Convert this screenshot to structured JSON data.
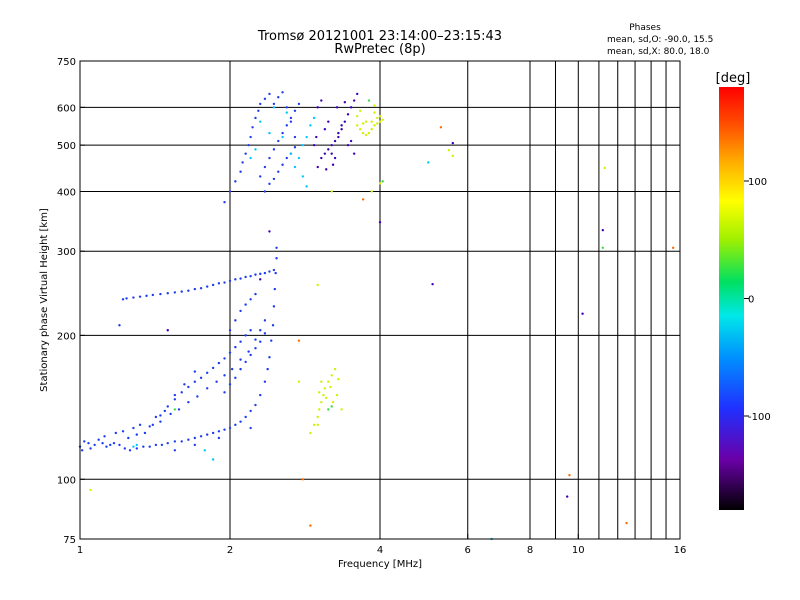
{
  "chart_data": {
    "type": "scatter",
    "title": "Tromsø 20121001 23:14:00–23:15:43",
    "subtitle": "RwPretec (8p)",
    "stats": {
      "heading": "Phases",
      "line1": "mean, sd,O: -90.0, 15.5",
      "line2": "mean, sd,X:  80.0, 18.0"
    },
    "xlabel": "Frequency [MHz]",
    "ylabel": "Stationary phase Virtual Height [km]",
    "xscale": "log",
    "yscale": "log",
    "xlim": [
      1,
      16
    ],
    "ylim": [
      75,
      750
    ],
    "x_ticks": [
      1,
      2,
      4,
      6,
      8,
      10,
      16
    ],
    "x_tick_labels": [
      "1",
      "2",
      "4",
      "6",
      "8",
      "10",
      "16"
    ],
    "y_ticks": [
      75,
      100,
      200,
      300,
      400,
      500,
      600,
      750
    ],
    "y_tick_labels": [
      "75",
      "100",
      "200",
      "300",
      "400",
      "500",
      "600",
      "750"
    ],
    "grid_x": [
      2,
      4,
      6,
      8,
      9,
      10,
      11,
      12,
      13,
      14,
      15
    ],
    "grid_y": [
      100,
      200,
      300,
      400,
      500,
      600
    ],
    "colorbar": {
      "label": "[deg]",
      "range": [
        -180,
        180
      ],
      "ticks": [
        100,
        0,
        -100
      ],
      "tick_labels": [
        "100",
        "0",
        "-100"
      ]
    },
    "series": [
      {
        "color": "#1e3cf0",
        "points": [
          [
            1.0,
            117
          ],
          [
            1.01,
            115
          ],
          [
            1.02,
            120
          ],
          [
            1.04,
            119
          ],
          [
            1.05,
            116
          ],
          [
            1.07,
            118
          ],
          [
            1.09,
            121
          ],
          [
            1.11,
            119
          ],
          [
            1.13,
            117
          ],
          [
            1.15,
            118
          ],
          [
            1.17,
            119
          ],
          [
            1.2,
            118
          ],
          [
            1.23,
            116
          ],
          [
            1.26,
            115
          ],
          [
            1.3,
            116
          ],
          [
            1.34,
            117
          ],
          [
            1.38,
            117
          ],
          [
            1.42,
            118
          ],
          [
            1.46,
            118
          ],
          [
            1.5,
            119
          ],
          [
            1.55,
            120
          ],
          [
            1.6,
            120
          ],
          [
            1.65,
            121
          ],
          [
            1.7,
            122
          ],
          [
            1.75,
            123
          ],
          [
            1.8,
            124
          ],
          [
            1.85,
            125
          ],
          [
            1.9,
            126
          ],
          [
            1.95,
            127
          ],
          [
            2.0,
            128
          ],
          [
            2.05,
            130
          ],
          [
            2.1,
            132
          ],
          [
            2.15,
            135
          ],
          [
            2.2,
            139
          ],
          [
            2.25,
            143
          ],
          [
            2.3,
            150
          ],
          [
            2.35,
            160
          ],
          [
            2.38,
            170
          ],
          [
            2.4,
            180
          ],
          [
            2.42,
            195
          ],
          [
            2.44,
            210
          ],
          [
            2.45,
            230
          ],
          [
            2.46,
            250
          ],
          [
            2.47,
            270
          ],
          [
            2.48,
            290
          ],
          [
            2.48,
            305
          ],
          [
            1.35,
            125
          ],
          [
            1.4,
            130
          ],
          [
            1.45,
            136
          ],
          [
            1.5,
            142
          ],
          [
            1.55,
            147
          ],
          [
            1.6,
            152
          ],
          [
            1.65,
            156
          ],
          [
            1.7,
            160
          ],
          [
            1.75,
            163
          ],
          [
            1.8,
            167
          ],
          [
            1.85,
            171
          ],
          [
            1.9,
            175
          ],
          [
            1.95,
            179
          ],
          [
            2.0,
            184
          ],
          [
            2.05,
            189
          ],
          [
            2.1,
            194
          ],
          [
            2.15,
            200
          ],
          [
            2.2,
            205
          ],
          [
            1.25,
            122
          ],
          [
            1.3,
            124
          ],
          [
            1.38,
            129
          ],
          [
            1.45,
            132
          ],
          [
            1.52,
            137
          ],
          [
            1.58,
            140
          ],
          [
            1.65,
            145
          ],
          [
            1.72,
            149
          ],
          [
            1.8,
            155
          ],
          [
            1.88,
            160
          ],
          [
            1.95,
            165
          ],
          [
            2.02,
            170
          ],
          [
            2.1,
            178
          ],
          [
            2.18,
            185
          ],
          [
            2.25,
            196
          ],
          [
            2.3,
            205
          ],
          [
            2.35,
            215
          ],
          [
            1.95,
            152
          ],
          [
            2.0,
            158
          ],
          [
            2.05,
            163
          ],
          [
            2.1,
            170
          ],
          [
            2.15,
            176
          ],
          [
            2.2,
            182
          ],
          [
            2.25,
            188
          ],
          [
            2.3,
            194
          ],
          [
            2.35,
            202
          ],
          [
            2.0,
            205
          ],
          [
            2.05,
            215
          ],
          [
            2.1,
            225
          ],
          [
            2.15,
            232
          ],
          [
            2.2,
            238
          ],
          [
            2.25,
            244
          ],
          [
            1.12,
            123
          ],
          [
            1.18,
            125
          ],
          [
            1.22,
            126
          ],
          [
            1.28,
            128
          ],
          [
            1.32,
            130
          ],
          [
            1.42,
            135
          ],
          [
            1.48,
            139
          ],
          [
            1.55,
            150
          ],
          [
            1.62,
            158
          ],
          [
            1.7,
            168
          ],
          [
            1.2,
            210
          ],
          [
            1.22,
            238
          ],
          [
            1.24,
            239
          ],
          [
            1.28,
            240
          ],
          [
            1.32,
            241
          ],
          [
            1.36,
            242
          ],
          [
            1.4,
            243
          ],
          [
            1.45,
            244
          ],
          [
            1.5,
            245
          ],
          [
            1.55,
            246
          ],
          [
            1.6,
            247
          ],
          [
            1.65,
            248
          ],
          [
            1.7,
            250
          ],
          [
            1.75,
            251
          ],
          [
            1.8,
            253
          ],
          [
            1.85,
            255
          ],
          [
            1.9,
            257
          ],
          [
            1.95,
            258
          ],
          [
            2.0,
            260
          ],
          [
            2.05,
            262
          ],
          [
            2.1,
            263
          ],
          [
            2.15,
            265
          ],
          [
            2.2,
            266
          ],
          [
            2.25,
            268
          ],
          [
            2.3,
            269
          ],
          [
            2.35,
            270
          ],
          [
            2.4,
            272
          ],
          [
            2.45,
            274
          ],
          [
            1.95,
            380
          ],
          [
            2.0,
            400
          ],
          [
            2.05,
            420
          ],
          [
            2.1,
            440
          ],
          [
            2.12,
            460
          ],
          [
            2.15,
            480
          ],
          [
            2.18,
            500
          ],
          [
            2.2,
            520
          ],
          [
            2.22,
            545
          ],
          [
            2.25,
            570
          ],
          [
            2.28,
            590
          ],
          [
            2.3,
            610
          ],
          [
            2.35,
            625
          ],
          [
            2.4,
            640
          ],
          [
            2.45,
            610
          ],
          [
            2.5,
            630
          ],
          [
            2.55,
            645
          ],
          [
            2.6,
            600
          ],
          [
            2.65,
            560
          ],
          [
            2.7,
            520
          ],
          [
            2.3,
            430
          ],
          [
            2.35,
            450
          ],
          [
            2.4,
            470
          ],
          [
            2.45,
            490
          ],
          [
            2.5,
            510
          ],
          [
            2.55,
            530
          ],
          [
            2.6,
            550
          ],
          [
            2.65,
            570
          ],
          [
            2.7,
            590
          ],
          [
            2.75,
            610
          ],
          [
            2.35,
            400
          ],
          [
            2.4,
            415
          ],
          [
            2.45,
            425
          ],
          [
            2.5,
            440
          ],
          [
            2.55,
            455
          ],
          [
            2.6,
            470
          ],
          [
            2.65,
            480
          ],
          [
            2.7,
            495
          ],
          [
            1.55,
            115
          ],
          [
            1.7,
            118
          ],
          [
            1.9,
            122
          ],
          [
            2.2,
            128
          ]
        ]
      },
      {
        "color": "#00c8ff",
        "points": [
          [
            2.3,
            560
          ],
          [
            2.45,
            600
          ],
          [
            2.55,
            520
          ],
          [
            2.6,
            585
          ],
          [
            2.7,
            450
          ],
          [
            2.75,
            470
          ],
          [
            2.8,
            500
          ],
          [
            2.85,
            520
          ],
          [
            2.9,
            550
          ],
          [
            2.95,
            570
          ],
          [
            2.2,
            470
          ],
          [
            2.25,
            490
          ],
          [
            2.4,
            530
          ],
          [
            2.65,
            480
          ],
          [
            2.8,
            430
          ],
          [
            1.85,
            110
          ],
          [
            1.78,
            115
          ],
          [
            1.3,
            118
          ],
          [
            1.28,
            117
          ],
          [
            2.85,
            410
          ],
          [
            5.0,
            460
          ],
          [
            6.7,
            75
          ]
        ]
      },
      {
        "color": "#3a00b4",
        "points": [
          [
            3.0,
            450
          ],
          [
            3.05,
            470
          ],
          [
            3.1,
            480
          ],
          [
            3.15,
            490
          ],
          [
            3.2,
            500
          ],
          [
            3.25,
            510
          ],
          [
            3.3,
            520
          ],
          [
            3.35,
            540
          ],
          [
            3.4,
            560
          ],
          [
            3.45,
            580
          ],
          [
            3.5,
            600
          ],
          [
            3.55,
            620
          ],
          [
            3.6,
            640
          ],
          [
            3.0,
            600
          ],
          [
            3.05,
            620
          ],
          [
            3.1,
            540
          ],
          [
            3.15,
            560
          ],
          [
            3.2,
            480
          ],
          [
            3.25,
            470
          ],
          [
            3.3,
            530
          ],
          [
            3.35,
            550
          ],
          [
            3.45,
            500
          ],
          [
            3.5,
            510
          ],
          [
            3.55,
            480
          ],
          [
            2.95,
            500
          ],
          [
            2.98,
            520
          ],
          [
            3.12,
            445
          ],
          [
            3.22,
            455
          ],
          [
            3.28,
            600
          ],
          [
            3.4,
            615
          ],
          [
            2.4,
            330
          ],
          [
            2.3,
            262
          ],
          [
            1.5,
            205
          ],
          [
            4.0,
            345
          ],
          [
            5.1,
            256
          ],
          [
            5.6,
            505
          ],
          [
            9.5,
            92
          ],
          [
            10.2,
            222
          ],
          [
            11.2,
            332
          ]
        ]
      },
      {
        "color": "#d2f000",
        "points": [
          [
            3.6,
            550
          ],
          [
            3.65,
            540
          ],
          [
            3.7,
            530
          ],
          [
            3.75,
            525
          ],
          [
            3.8,
            530
          ],
          [
            3.85,
            540
          ],
          [
            3.9,
            550
          ],
          [
            3.95,
            555
          ],
          [
            4.0,
            560
          ],
          [
            4.05,
            565
          ],
          [
            3.7,
            555
          ],
          [
            3.75,
            560
          ],
          [
            3.85,
            560
          ],
          [
            3.95,
            570
          ],
          [
            4.0,
            575
          ],
          [
            3.6,
            575
          ],
          [
            3.65,
            590
          ],
          [
            3.9,
            585
          ],
          [
            3.0,
            135
          ],
          [
            3.02,
            140
          ],
          [
            3.05,
            145
          ],
          [
            3.08,
            150
          ],
          [
            3.1,
            155
          ],
          [
            3.15,
            160
          ],
          [
            3.2,
            165
          ],
          [
            3.25,
            170
          ],
          [
            3.3,
            162
          ],
          [
            3.05,
            160
          ],
          [
            3.12,
            148
          ],
          [
            3.18,
            156
          ],
          [
            3.22,
            145
          ],
          [
            3.28,
            150
          ],
          [
            3.02,
            152
          ],
          [
            2.95,
            130
          ],
          [
            2.9,
            125
          ],
          [
            3.0,
            130
          ],
          [
            3.35,
            140
          ],
          [
            2.75,
            160
          ],
          [
            3.85,
            400
          ],
          [
            5.5,
            488
          ],
          [
            11.3,
            448
          ],
          [
            3.0,
            255
          ],
          [
            3.2,
            400
          ],
          [
            4.0,
            416
          ],
          [
            1.05,
            95
          ],
          [
            5.6,
            475
          ],
          [
            3.9,
            605
          ]
        ]
      },
      {
        "color": "#40d840",
        "points": [
          [
            3.8,
            620
          ],
          [
            11.2,
            305
          ],
          [
            4.05,
            420
          ],
          [
            1.55,
            140
          ],
          [
            3.15,
            140
          ],
          [
            3.2,
            142
          ]
        ]
      },
      {
        "color": "#ff6a00",
        "points": [
          [
            2.75,
            195
          ],
          [
            2.8,
            100
          ],
          [
            2.9,
            80
          ],
          [
            3.7,
            385
          ],
          [
            9.6,
            102
          ],
          [
            12.5,
            81
          ],
          [
            15.5,
            305
          ],
          [
            5.3,
            545
          ]
        ]
      }
    ]
  }
}
